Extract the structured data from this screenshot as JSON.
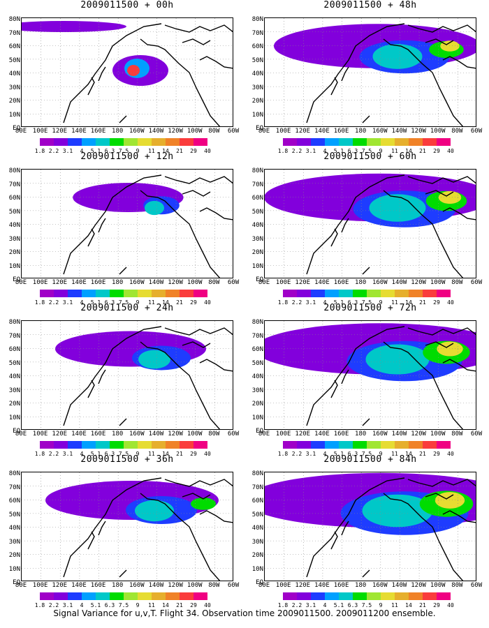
{
  "panels": [
    {
      "title": "2009011500 + 00h",
      "fill": 0.05
    },
    {
      "title": "2009011500 + 48h",
      "fill": 0.55
    },
    {
      "title": "2009011500 + 12h",
      "fill": 0.12
    },
    {
      "title": "2009011500 + 60h",
      "fill": 0.65
    },
    {
      "title": "2009011500 + 24h",
      "fill": 0.3
    },
    {
      "title": "2009011500 + 72h",
      "fill": 0.75
    },
    {
      "title": "2009011500 + 36h",
      "fill": 0.4
    },
    {
      "title": "2009011500 + 84h",
      "fill": 0.85
    }
  ],
  "lat_labels": [
    "80N",
    "70N",
    "60N",
    "50N",
    "40N",
    "30N",
    "20N",
    "10N",
    "EQ"
  ],
  "lon_labels": [
    "80E",
    "100E",
    "120E",
    "140E",
    "160E",
    "180",
    "160W",
    "140W",
    "120W",
    "100W",
    "80W",
    "60W"
  ],
  "colorbar": {
    "colors": [
      "#a000c8",
      "#8200dc",
      "#1e3cff",
      "#00a0ff",
      "#00c8c8",
      "#00dc00",
      "#a0e632",
      "#e6dc32",
      "#e6af2d",
      "#f08228",
      "#fa3c3c",
      "#f00082"
    ],
    "labels": [
      "1.8",
      "2.2",
      "3.1",
      "4",
      "5.1",
      "6.3",
      "7.5",
      "9",
      "11",
      "14",
      "21",
      "29",
      "40"
    ]
  },
  "footer": "Signal Variance for u,v,T. Flight 34. Observation time 2009011500. 2009011200 ensemble.",
  "colors": {
    "land_outline": "#000000",
    "grid": "#888888"
  }
}
